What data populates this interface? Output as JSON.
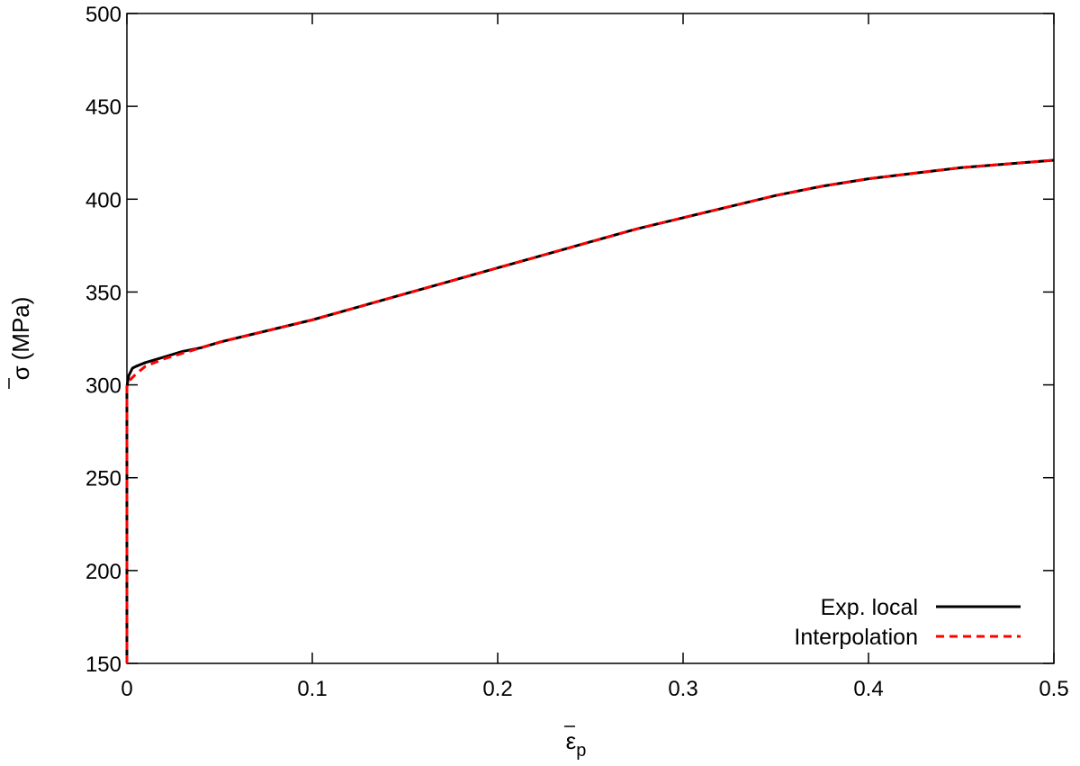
{
  "chart_data": {
    "type": "line",
    "title": "",
    "xlabel": "ε",
    "xlabel_sub": "p",
    "ylabel_symbol": "σ",
    "ylabel_unit": "(MPa)",
    "xlim": [
      0,
      0.5
    ],
    "ylim": [
      150,
      500
    ],
    "xticks": [
      0,
      0.1,
      0.2,
      0.3,
      0.4,
      0.5
    ],
    "xtick_labels": [
      "0",
      "0.1",
      "0.2",
      "0.3",
      "0.4",
      "0.5"
    ],
    "yticks": [
      150,
      200,
      250,
      300,
      350,
      400,
      450,
      500
    ],
    "ytick_labels": [
      "150",
      "200",
      "250",
      "300",
      "350",
      "400",
      "450",
      "500"
    ],
    "grid": false,
    "legend_position": "bottom-right",
    "series": [
      {
        "name": "Exp. local",
        "color": "#000000",
        "style": "solid",
        "x": [
          0,
          0,
          0,
          0,
          0.001,
          0.003,
          0.005,
          0.01,
          0.02,
          0.03,
          0.04,
          0.05,
          0.075,
          0.1,
          0.125,
          0.15,
          0.175,
          0.2,
          0.225,
          0.25,
          0.275,
          0.3,
          0.325,
          0.35,
          0.375,
          0.4,
          0.425,
          0.45,
          0.475,
          0.5
        ],
        "y": [
          150,
          200,
          260,
          299,
          305,
          309,
          310,
          312,
          315,
          318,
          320,
          323,
          329,
          335,
          342,
          349,
          356,
          363,
          370,
          377,
          384,
          390,
          396,
          402,
          407,
          411,
          414,
          417,
          419,
          421
        ]
      },
      {
        "name": "Interpolation",
        "color": "#ff0000",
        "style": "dashed",
        "x": [
          0,
          0,
          0,
          0,
          0.002,
          0.005,
          0.01,
          0.02,
          0.03,
          0.04,
          0.05,
          0.075,
          0.1,
          0.125,
          0.15,
          0.175,
          0.2,
          0.225,
          0.25,
          0.275,
          0.3,
          0.325,
          0.35,
          0.375,
          0.4,
          0.425,
          0.45,
          0.475,
          0.5
        ],
        "y": [
          150,
          200,
          260,
          299,
          303,
          306,
          310,
          314,
          317,
          320,
          323,
          329,
          335,
          342,
          349,
          356,
          363,
          370,
          377,
          384,
          390,
          396,
          402,
          407,
          411,
          414,
          417,
          419,
          421
        ]
      }
    ]
  }
}
